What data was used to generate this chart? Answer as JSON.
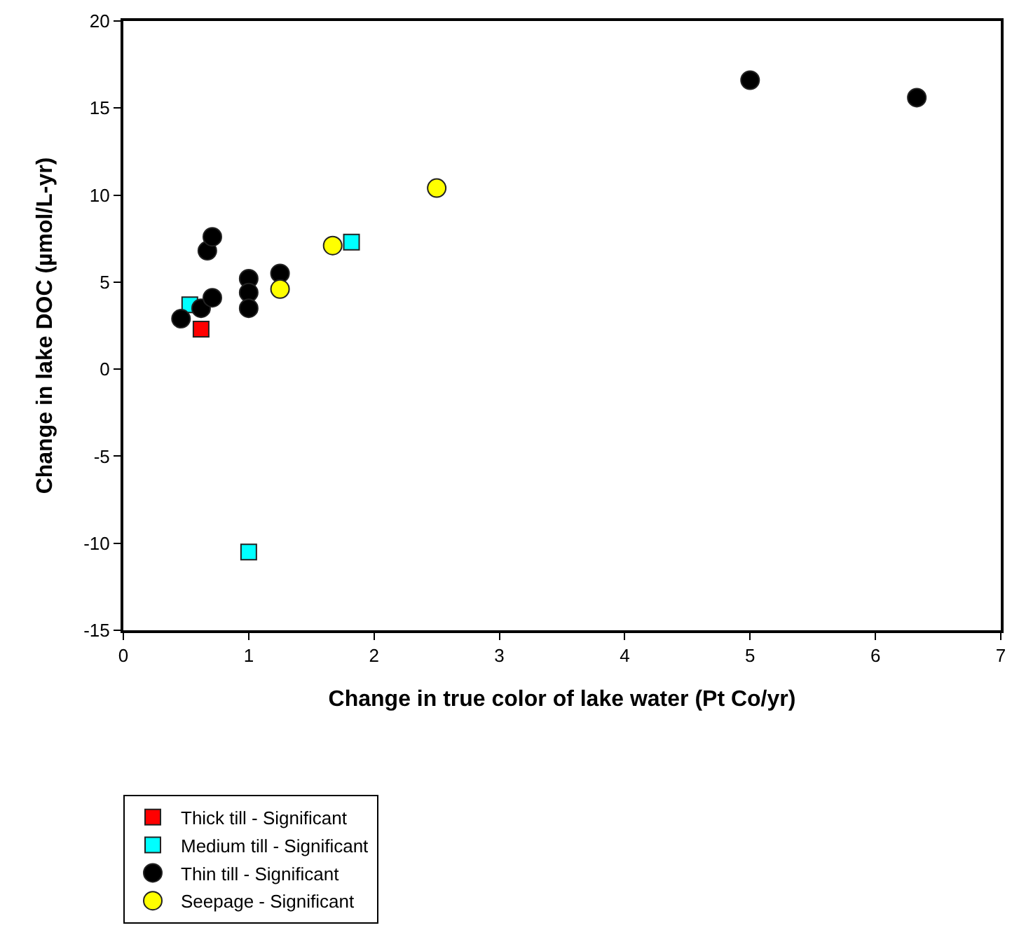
{
  "chart_data": {
    "type": "scatter",
    "xlabel": "Change in true color of lake water (Pt Co/yr)",
    "ylabel": "Change in lake DOC (µmol/L-yr)",
    "xlim": [
      0,
      7
    ],
    "xticks": [
      0,
      1,
      2,
      3,
      4,
      5,
      6,
      7
    ],
    "ylim": [
      -15,
      20
    ],
    "yticks": [
      -15,
      -10,
      -5,
      0,
      5,
      10,
      15,
      20
    ],
    "grid": false,
    "legend": "bottom left",
    "series": [
      {
        "name": "Thick till - Significant",
        "color": "#ff0000",
        "marker": "square",
        "x": [
          0.62
        ],
        "values": [
          2.3
        ]
      },
      {
        "name": "Medium till - Significant",
        "color": "#00ffff",
        "marker": "square",
        "x": [
          0.53,
          1.82,
          1.0
        ],
        "values": [
          3.7,
          7.3,
          -10.5
        ]
      },
      {
        "name": "Thin till - Significant",
        "color": "#000000",
        "marker": "circle",
        "x": [
          0.46,
          0.62,
          0.71,
          0.67,
          0.71,
          1.0,
          1.0,
          1.0,
          1.25,
          5.0,
          6.33
        ],
        "values": [
          2.9,
          3.5,
          4.1,
          6.8,
          7.6,
          5.2,
          4.4,
          3.5,
          5.5,
          16.6,
          15.6
        ]
      },
      {
        "name": "Seepage - Significant",
        "color": "#ffff00",
        "marker": "circle",
        "x": [
          1.25,
          1.67,
          2.5
        ],
        "values": [
          4.6,
          7.1,
          10.4
        ]
      }
    ]
  }
}
